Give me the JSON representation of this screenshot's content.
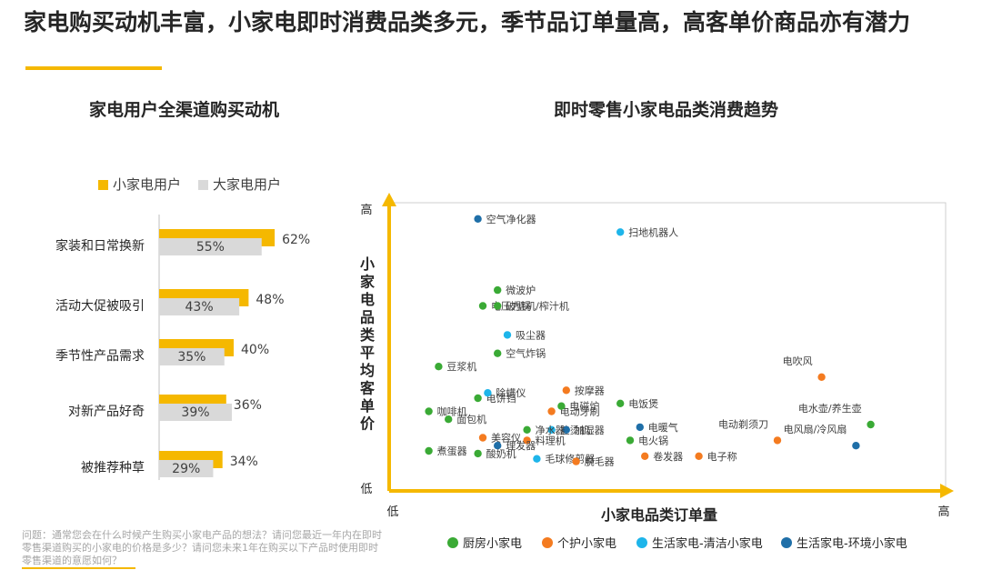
{
  "header": {
    "title": "家电购买动机丰富，小家电即时消费品类多元，季节品订单量高，高客单价商品亦有潜力"
  },
  "left_chart_title": "家电用户全渠道购买动机",
  "right_chart_title": "即时零售小家电品类消费趋势",
  "footnote": "问题：通常您会在什么时候产生购买小家电产品的想法？请问您最近一年内在即时零售渠道购买的小家电的价格是多少？请问您未来1年在购买以下产品时使用即时零售渠道的意愿如何？",
  "colors": {
    "accent": "#f5b800",
    "bar_small": "#f5b800",
    "bar_large": "#d9d9d9",
    "kitchen": "#3aaa35",
    "care": "#f47b20",
    "clean": "#1eb5ea",
    "env": "#1f6fa8"
  },
  "chart_data": [
    {
      "type": "bar",
      "orientation": "horizontal",
      "title": "家电用户全渠道购买动机",
      "categories": [
        "家装和日常换新",
        "活动大促被吸引",
        "季节性产品需求",
        "对新产品好奇",
        "被推荐种草"
      ],
      "series": [
        {
          "name": "小家电用户",
          "color": "#f5b800",
          "values": [
            62,
            48,
            40,
            36,
            34
          ]
        },
        {
          "name": "大家电用户",
          "color": "#d9d9d9",
          "values": [
            55,
            43,
            35,
            39,
            29
          ]
        }
      ],
      "value_suffix": "%",
      "legend": "top-left"
    },
    {
      "type": "scatter",
      "title": "即时零售小家电品类消费趋势",
      "xlabel": "小家电品类订单量",
      "ylabel": "小家电品类平均客单价",
      "x_low": "低",
      "x_high": "高",
      "y_low": "低",
      "y_high": "高",
      "xlim": [
        0,
        100
      ],
      "ylim": [
        0,
        100
      ],
      "series": [
        {
          "name": "厨房小家电",
          "color": "#3aaa35"
        },
        {
          "name": "个护小家电",
          "color": "#f47b20"
        },
        {
          "name": "生活家电-清洁小家电",
          "color": "#1eb5ea"
        },
        {
          "name": "生活家电-环境小家电",
          "color": "#1f6fa8"
        }
      ],
      "points": [
        {
          "label": "空气净化器",
          "series": 3,
          "x": 14,
          "y": 98
        },
        {
          "label": "扫地机器人",
          "series": 2,
          "x": 43,
          "y": 93
        },
        {
          "label": "微波炉",
          "series": 0,
          "x": 18,
          "y": 71
        },
        {
          "label": "电压力锅",
          "series": 0,
          "x": 15,
          "y": 65
        },
        {
          "label": "破壁机/榨汁机",
          "series": 0,
          "x": 18,
          "y": 65
        },
        {
          "label": "吸尘器",
          "series": 2,
          "x": 20,
          "y": 54
        },
        {
          "label": "豆浆机",
          "series": 0,
          "x": 6,
          "y": 42
        },
        {
          "label": "空气炸锅",
          "series": 0,
          "x": 18,
          "y": 47
        },
        {
          "label": "电饼铛",
          "series": 0,
          "x": 14,
          "y": 30
        },
        {
          "label": "除螨仪",
          "series": 2,
          "x": 16,
          "y": 32
        },
        {
          "label": "按摩器",
          "series": 1,
          "x": 32,
          "y": 33
        },
        {
          "label": "咖啡机",
          "series": 0,
          "x": 4,
          "y": 25
        },
        {
          "label": "电动牙刷",
          "series": 1,
          "x": 29,
          "y": 25
        },
        {
          "label": "电磁炉",
          "series": 0,
          "x": 31,
          "y": 27
        },
        {
          "label": "电饭煲",
          "series": 0,
          "x": 43,
          "y": 28
        },
        {
          "label": "面包机",
          "series": 0,
          "x": 8,
          "y": 22
        },
        {
          "label": "挂烫机",
          "series": 2,
          "x": 29,
          "y": 18
        },
        {
          "label": "加湿器",
          "series": 3,
          "x": 32,
          "y": 18
        },
        {
          "label": "电暖气",
          "series": 3,
          "x": 47,
          "y": 19
        },
        {
          "label": "美容仪",
          "series": 1,
          "x": 15,
          "y": 15
        },
        {
          "label": "净水器",
          "series": 0,
          "x": 24,
          "y": 18
        },
        {
          "label": "电火锅",
          "series": 0,
          "x": 45,
          "y": 14
        },
        {
          "label": "料理机",
          "series": 1,
          "x": 24,
          "y": 14
        },
        {
          "label": "煮蛋器",
          "series": 0,
          "x": 4,
          "y": 10
        },
        {
          "label": "理发器",
          "series": 3,
          "x": 18,
          "y": 12
        },
        {
          "label": "酸奶机",
          "series": 0,
          "x": 14,
          "y": 9
        },
        {
          "label": "毛球修剪器",
          "series": 2,
          "x": 26,
          "y": 7
        },
        {
          "label": "脱毛器",
          "series": 1,
          "x": 34,
          "y": 6
        },
        {
          "label": "卷发器",
          "series": 1,
          "x": 48,
          "y": 8
        },
        {
          "label": "电子称",
          "series": 1,
          "x": 59,
          "y": 8
        },
        {
          "label": "电吹风",
          "series": 1,
          "x": 84,
          "y": 38
        },
        {
          "label": "电动剃须刀",
          "series": 1,
          "x": 75,
          "y": 14
        },
        {
          "label": "电水壶/养生壶",
          "series": 0,
          "x": 94,
          "y": 20
        },
        {
          "label": "电风扇/冷风扇",
          "series": 3,
          "x": 91,
          "y": 12
        }
      ],
      "legend": "bottom"
    }
  ]
}
